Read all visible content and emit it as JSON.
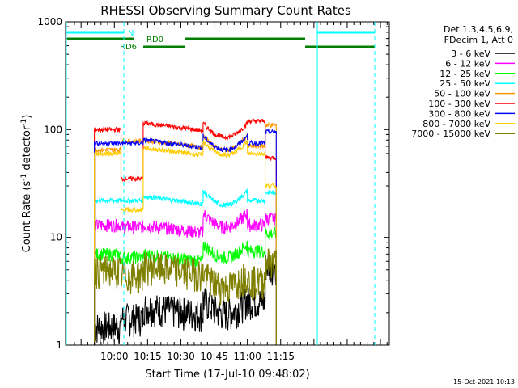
{
  "chart_data": {
    "type": "line",
    "title": "RHESSI Observing Summary Count Rates",
    "xlabel": "Start Time (17-Jul-10 09:48:02)",
    "ylabel_main": "Count Rate (s",
    "ylabel_sup1": "-1",
    "ylabel_mid": " detector",
    "ylabel_sup2": "-1",
    "ylabel_end": ")",
    "yscale": "log",
    "ylim": [
      1,
      1000
    ],
    "xlim_minutes": [
      -10,
      136
    ],
    "x_ticks": [
      {
        "m": 12,
        "label": "10:00"
      },
      {
        "m": 27,
        "label": "10:15"
      },
      {
        "m": 42,
        "label": "10:30"
      },
      {
        "m": 57,
        "label": "10:45"
      },
      {
        "m": 72,
        "label": "11:00"
      },
      {
        "m": 87,
        "label": "11:15"
      }
    ],
    "y_ticks": [
      {
        "v": 1,
        "label": "1"
      },
      {
        "v": 10,
        "label": "10"
      },
      {
        "v": 100,
        "label": "100"
      },
      {
        "v": 1000,
        "label": "1000"
      }
    ],
    "legend_header": [
      "Det 1,3,4,5,6,9,",
      "FDecim 1, Att 0"
    ],
    "series": [
      {
        "name": "3 - 6 keV",
        "color": "#000000",
        "levels": [
          1.5,
          1.8,
          2.3,
          2.0,
          2.6,
          5.5
        ]
      },
      {
        "name": "6 - 12 keV",
        "color": "#ff00ff",
        "levels": [
          13,
          12.5,
          13,
          12.5,
          13,
          15
        ]
      },
      {
        "name": "12 - 25 keV",
        "color": "#00ff00",
        "levels": [
          7,
          6.5,
          7,
          6.5,
          7.5,
          11
        ]
      },
      {
        "name": "25 - 50 keV",
        "color": "#00ffff",
        "levels": [
          22,
          22,
          24,
          20,
          22,
          26
        ]
      },
      {
        "name": "50 - 100 keV",
        "color": "#ff9900",
        "levels": [
          65,
          78,
          80,
          65,
          70,
          110
        ]
      },
      {
        "name": "100 - 300 keV",
        "color": "#ff0000",
        "levels": [
          100,
          35,
          115,
          85,
          120,
          55
        ]
      },
      {
        "name": "300 - 800 keV",
        "color": "#0000ff",
        "levels": [
          75,
          75,
          80,
          65,
          75,
          95
        ]
      },
      {
        "name": "800 - 7000 keV",
        "color": "#ffcc00",
        "levels": [
          60,
          18,
          68,
          58,
          60,
          30
        ]
      },
      {
        "name": "7000 - 15000 keV",
        "color": "#808000",
        "levels": [
          5,
          4.5,
          5.5,
          3.5,
          4,
          6
        ]
      }
    ],
    "segments_minutes": [
      [
        3,
        15
      ],
      [
        15,
        25
      ],
      [
        25,
        52
      ],
      [
        52,
        72
      ],
      [
        72,
        80
      ],
      [
        80,
        85
      ]
    ],
    "annotations": [
      {
        "label": "N",
        "color": "#00ffff"
      },
      {
        "label": "RD0",
        "color": "#008000"
      },
      {
        "label": "RD6",
        "color": "#008000"
      }
    ],
    "footer_date": "15-Oct-2021 10:13"
  }
}
